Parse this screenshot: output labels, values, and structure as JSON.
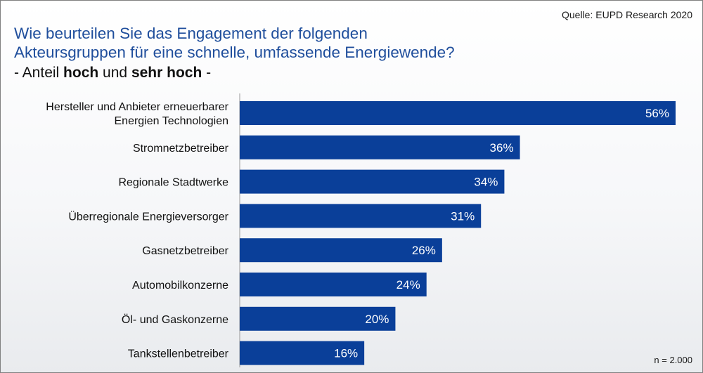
{
  "source": "Quelle: EUPD Research 2020",
  "title": "Wie beurteilen Sie das Engagement der folgenden\nAkteursgruppen für eine schnelle, umfassende Energiewende?",
  "subtitle": {
    "prefix": "- Anteil ",
    "bold1": "hoch",
    "middle": " und ",
    "bold2": "sehr hoch",
    "suffix": " -"
  },
  "sample_note": "n = 2.000",
  "bar_color": "#0a3f99",
  "chart_data": {
    "type": "bar",
    "orientation": "horizontal",
    "categories": [
      "Hersteller und Anbieter erneuerbarer Energien Technologien",
      "Stromnetzbetreiber",
      "Regionale Stadtwerke",
      "Überregionale Energieversorger",
      "Gasnetzbetreiber",
      "Automobilkonzerne",
      "Öl- und Gaskonzerne",
      "Tankstellenbetreiber"
    ],
    "category_lines": [
      [
        "Hersteller und Anbieter erneuerbarer",
        "Energien Technologien"
      ],
      [
        "Stromnetzbetreiber"
      ],
      [
        "Regionale Stadtwerke"
      ],
      [
        "Überregionale Energieversorger"
      ],
      [
        "Gasnetzbetreiber"
      ],
      [
        "Automobilkonzerne"
      ],
      [
        "Öl- und Gaskonzerne"
      ],
      [
        "Tankstellenbetreiber"
      ]
    ],
    "values": [
      56,
      36,
      34,
      31,
      26,
      24,
      20,
      16
    ],
    "value_labels": [
      "56%",
      "36%",
      "34%",
      "31%",
      "26%",
      "24%",
      "20%",
      "16%"
    ],
    "unit": "%",
    "xlim": [
      0,
      56
    ],
    "grid": false,
    "legend": "none"
  }
}
